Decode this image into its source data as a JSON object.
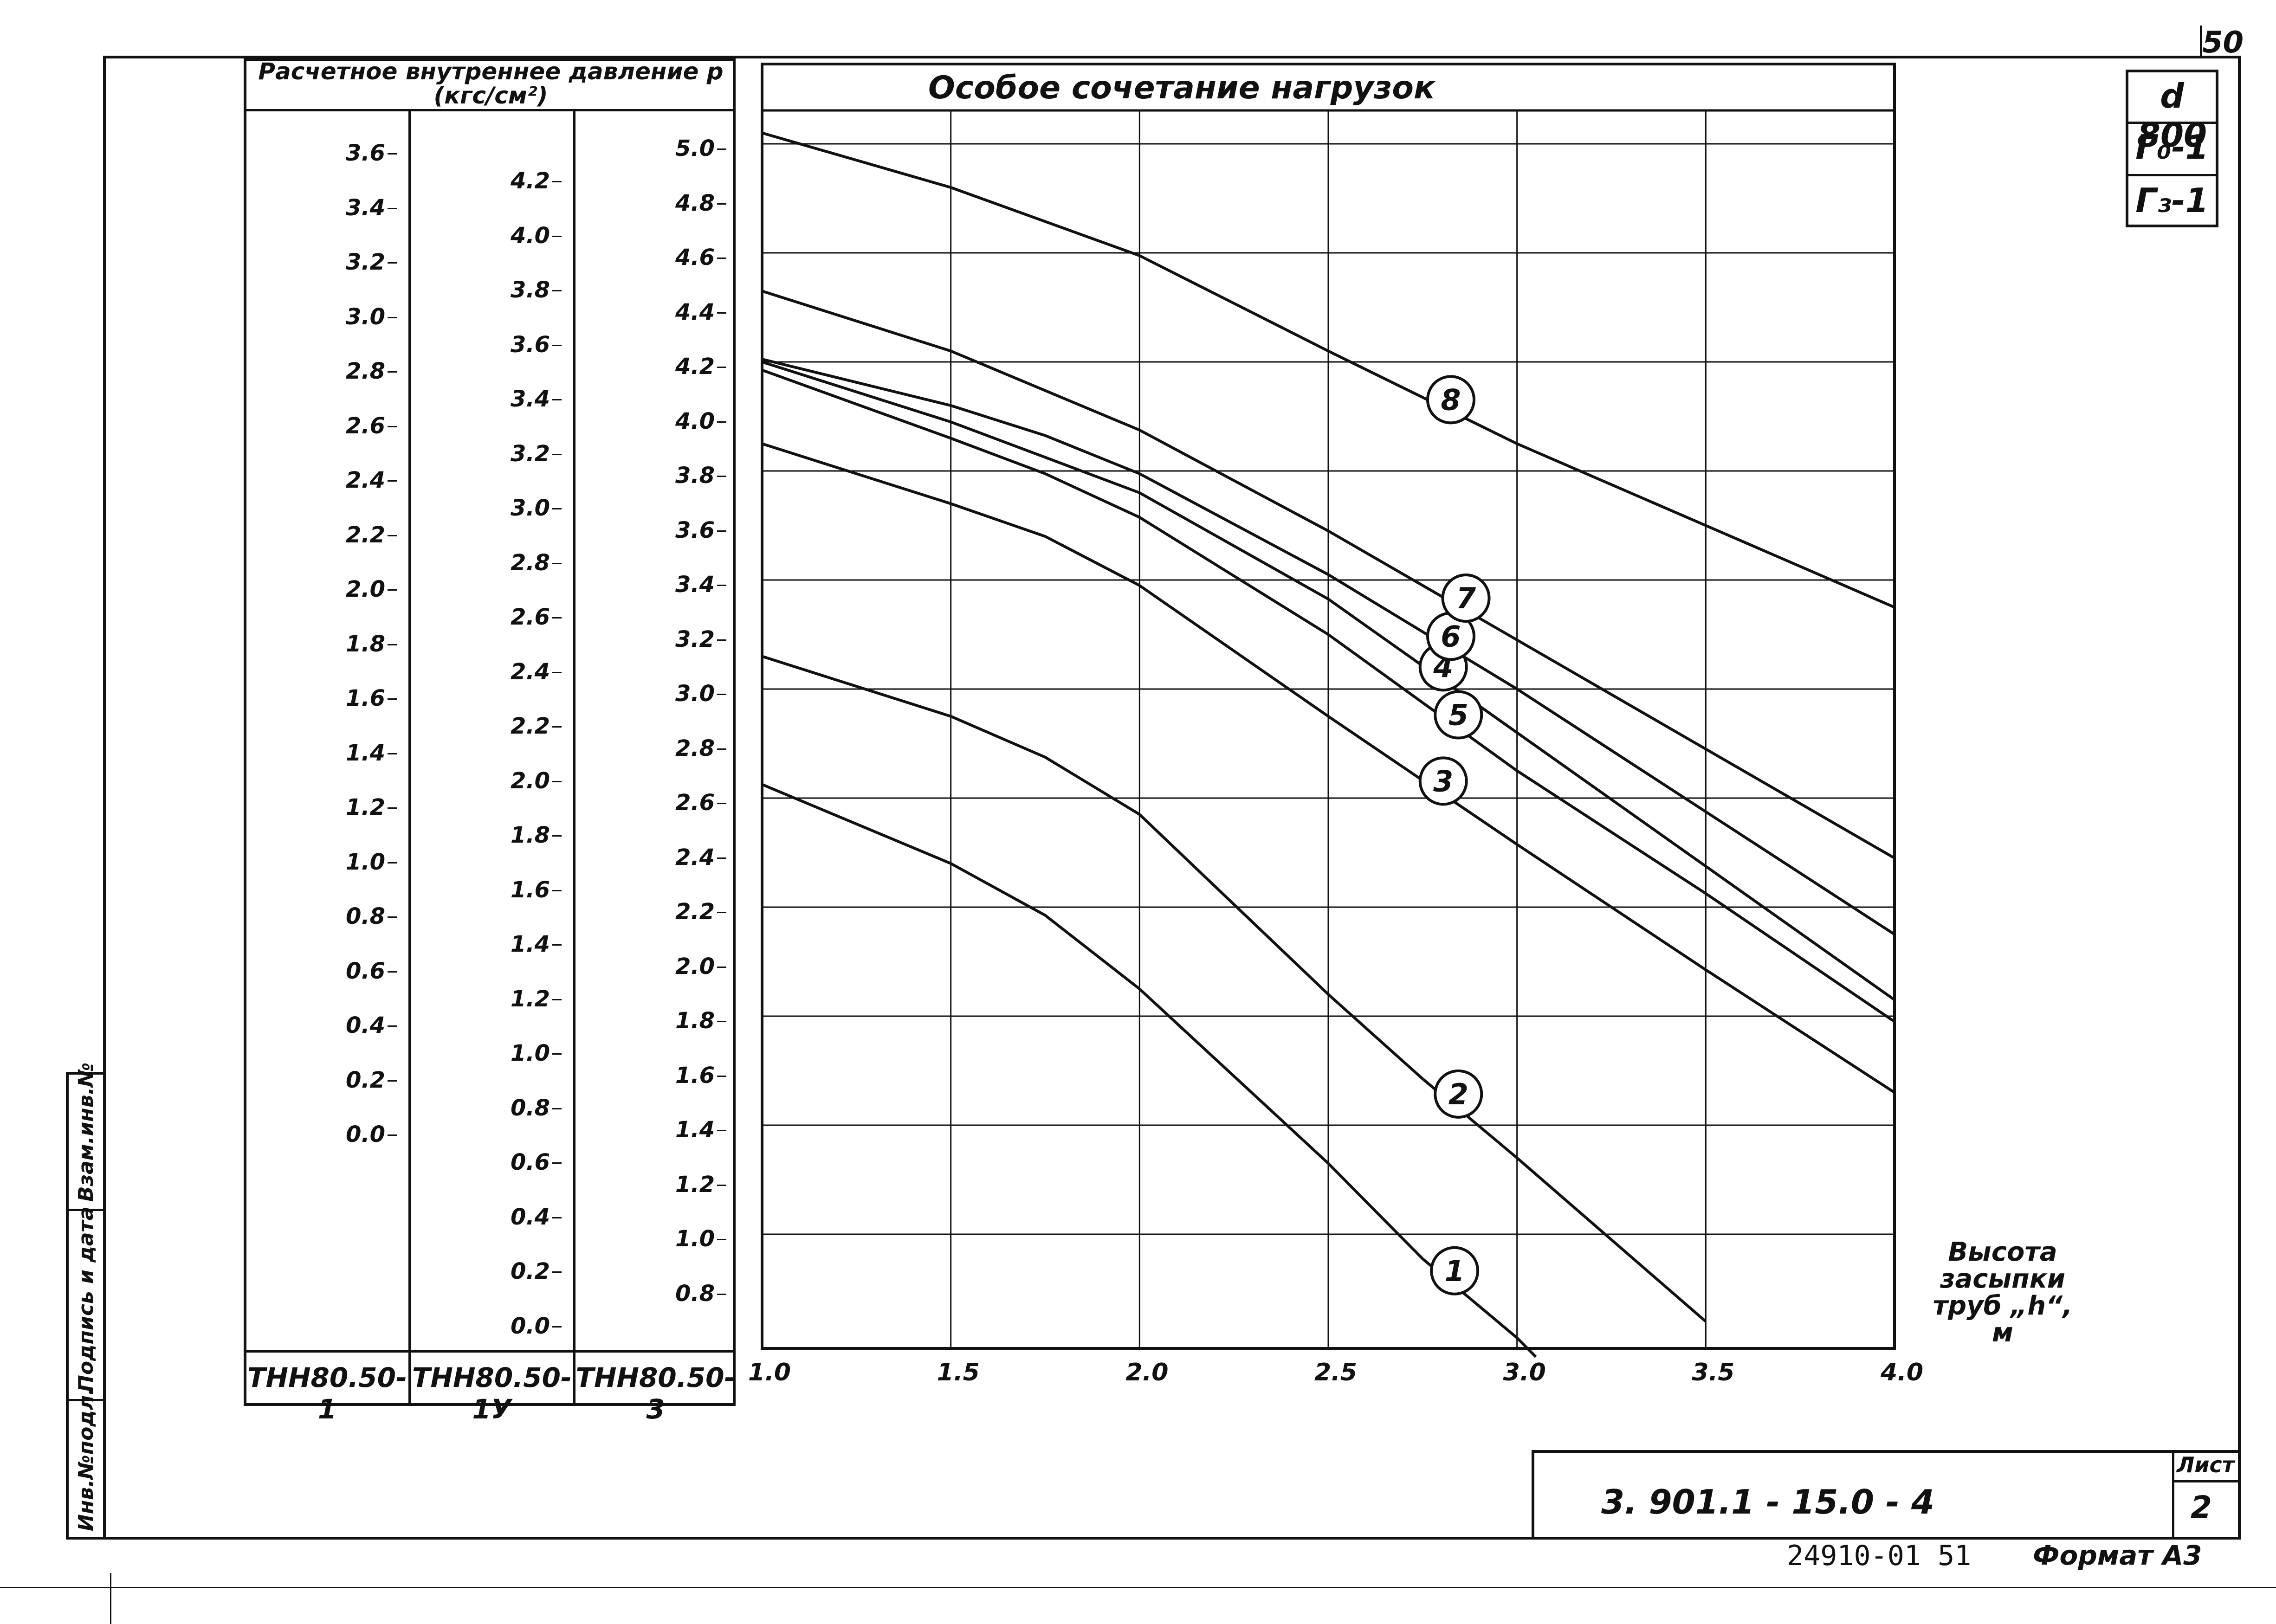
{
  "sheet": {
    "page_number_top": "50",
    "stamp_diameter": "d 800",
    "stamp_g0": "Г₀-1",
    "stamp_g3": "Г₃-1",
    "doc_code": "3. 901.1 - 15.0 - 4",
    "sheet_label": "Лист",
    "sheet_number": "2",
    "inventory": "24910-01 51",
    "format": "Формат А3",
    "side_labels": [
      "Инв.№подл.",
      "Подпись и дата",
      "Взам.инв.№"
    ]
  },
  "pressure_table": {
    "header": "Расчетное внутреннее давление р (кгс/см²)",
    "columns": [
      {
        "name": "ТНН80.50-1",
        "ticks": [
          "3.6",
          "3.4",
          "3.2",
          "3.0",
          "2.8",
          "2.6",
          "2.4",
          "2.2",
          "2.0",
          "1.8",
          "1.6",
          "1.4",
          "1.2",
          "1.0",
          "0.8",
          "0.6",
          "0.4",
          "0.2",
          "0.0"
        ]
      },
      {
        "name": "ТНН80.50-1У",
        "ticks": [
          "4.2",
          "4.0",
          "3.8",
          "3.6",
          "3.4",
          "3.2",
          "3.0",
          "2.8",
          "2.6",
          "2.4",
          "2.2",
          "2.0",
          "1.8",
          "1.6",
          "1.4",
          "1.2",
          "1.0",
          "0.8",
          "0.6",
          "0.4",
          "0.2",
          "0.0"
        ]
      },
      {
        "name": "ТНН80.50-3",
        "ticks": [
          "5.0",
          "4.8",
          "4.6",
          "4.4",
          "4.2",
          "4.0",
          "3.8",
          "3.6",
          "3.4",
          "3.2",
          "3.0",
          "2.8",
          "2.6",
          "2.4",
          "2.2",
          "2.0",
          "1.8",
          "1.6",
          "1.4",
          "1.2",
          "1.0",
          "0.8"
        ]
      }
    ]
  },
  "chart_data": {
    "type": "line",
    "title": "Особое сочетание нагрузок",
    "xlabel": "Высота засыпки труб „h“, м",
    "ylabel": "",
    "x_ticks": [
      "1.0",
      "1.5",
      "2.0",
      "2.5",
      "3.0",
      "3.5",
      "4.0"
    ],
    "xlim": [
      1.0,
      4.0
    ],
    "ylim": [
      0.6,
      5.1
    ],
    "y_axis_reference": "ТНН80.50-3",
    "grid": true,
    "series": [
      {
        "name": "1",
        "points": [
          [
            1.0,
            2.65
          ],
          [
            1.5,
            2.36
          ],
          [
            1.75,
            2.17
          ],
          [
            2.0,
            1.9
          ],
          [
            2.5,
            1.26
          ],
          [
            2.75,
            0.91
          ],
          [
            3.0,
            0.62
          ],
          [
            3.05,
            0.55
          ]
        ]
      },
      {
        "name": "2",
        "points": [
          [
            1.0,
            3.12
          ],
          [
            1.5,
            2.9
          ],
          [
            1.75,
            2.75
          ],
          [
            2.0,
            2.54
          ],
          [
            2.5,
            1.88
          ],
          [
            2.75,
            1.57
          ],
          [
            3.0,
            1.28
          ],
          [
            3.5,
            0.68
          ]
        ]
      },
      {
        "name": "3",
        "points": [
          [
            1.0,
            3.9
          ],
          [
            1.5,
            3.68
          ],
          [
            1.75,
            3.56
          ],
          [
            2.0,
            3.38
          ],
          [
            2.5,
            2.9
          ],
          [
            3.0,
            2.43
          ],
          [
            3.5,
            1.97
          ],
          [
            4.0,
            1.52
          ]
        ]
      },
      {
        "name": "4",
        "points": [
          [
            1.0,
            4.2
          ],
          [
            1.5,
            3.98
          ],
          [
            1.75,
            3.85
          ],
          [
            2.0,
            3.72
          ],
          [
            2.5,
            3.33
          ],
          [
            3.0,
            2.84
          ],
          [
            3.5,
            2.35
          ],
          [
            4.0,
            1.86
          ]
        ]
      },
      {
        "name": "5",
        "points": [
          [
            1.0,
            4.17
          ],
          [
            1.5,
            3.92
          ],
          [
            1.75,
            3.79
          ],
          [
            2.0,
            3.63
          ],
          [
            2.5,
            3.2
          ],
          [
            3.0,
            2.7
          ],
          [
            3.5,
            2.25
          ],
          [
            4.0,
            1.78
          ]
        ]
      },
      {
        "name": "6",
        "points": [
          [
            1.0,
            4.21
          ],
          [
            1.5,
            4.04
          ],
          [
            1.75,
            3.93
          ],
          [
            2.0,
            3.79
          ],
          [
            2.5,
            3.42
          ],
          [
            3.0,
            3.0
          ],
          [
            3.5,
            2.55
          ],
          [
            4.0,
            2.1
          ]
        ]
      },
      {
        "name": "7",
        "points": [
          [
            1.0,
            4.46
          ],
          [
            1.5,
            4.24
          ],
          [
            2.0,
            3.95
          ],
          [
            2.5,
            3.58
          ],
          [
            3.0,
            3.18
          ],
          [
            3.5,
            2.78
          ],
          [
            4.0,
            2.38
          ]
        ]
      },
      {
        "name": "8",
        "points": [
          [
            1.0,
            5.04
          ],
          [
            1.5,
            4.84
          ],
          [
            2.0,
            4.59
          ],
          [
            2.5,
            4.24
          ],
          [
            3.0,
            3.9
          ],
          [
            3.5,
            3.6
          ],
          [
            4.0,
            3.3
          ]
        ]
      }
    ]
  }
}
